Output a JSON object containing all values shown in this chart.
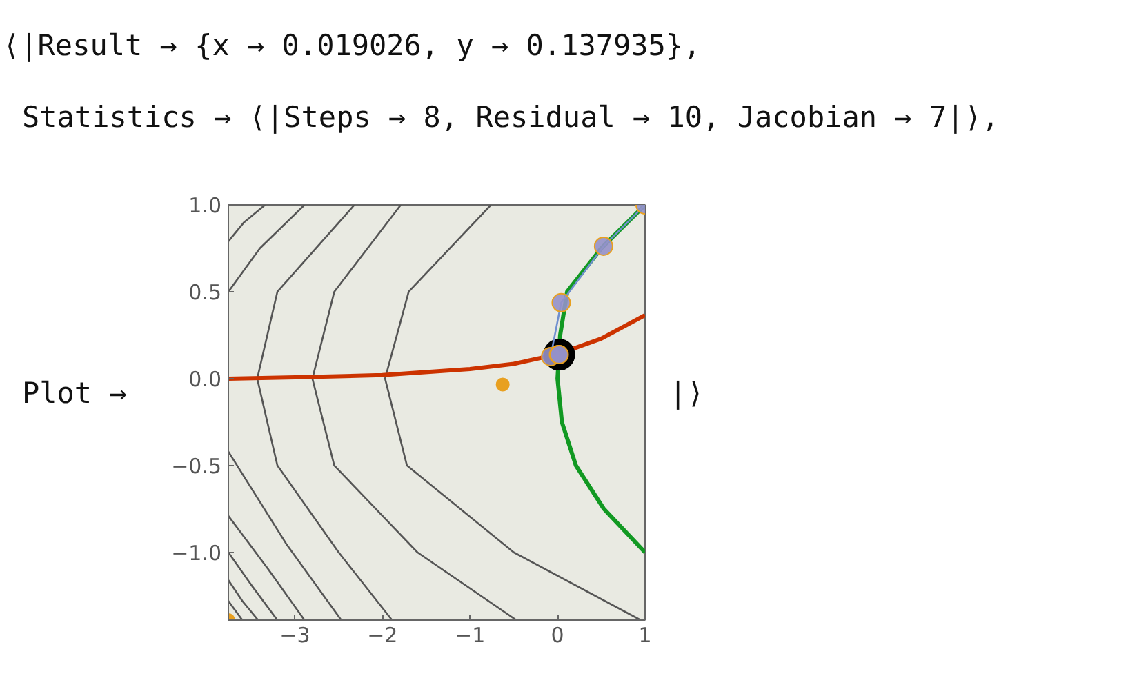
{
  "chart_data": {
    "type": "line",
    "title": "⟨|Result → {x → 0.019026, y → 0.137935},",
    "subtitle": "Statistics → ⟨|Steps → 8, Residual → 10, Jacobian → 7|⟩,",
    "annotations": [
      "Plot →",
      "|⟩"
    ],
    "xlim": [
      -3.76,
      1
    ],
    "ylim": [
      -1.39,
      1
    ],
    "xticks": [
      {
        "value": -3,
        "label": "−3"
      },
      {
        "value": -2,
        "label": "−2"
      },
      {
        "value": -1,
        "label": "−1"
      },
      0,
      1
    ],
    "yticks": [
      {
        "value": -1,
        "label": "−1.0"
      },
      {
        "value": -0.5,
        "label": "−0.5"
      },
      {
        "value": 0,
        "label": "0.0"
      },
      {
        "value": 0.5,
        "label": "0.5"
      },
      {
        "value": 1,
        "label": "1.0"
      }
    ],
    "grid": false,
    "series": [
      {
        "color": "#555555",
        "x": [
          -0.76,
          -1.7,
          -1.97,
          -1.72,
          -0.5,
          0.95
        ],
        "values": [
          1,
          0.5,
          0,
          -0.5,
          -1,
          -1.39
        ]
      },
      {
        "color": "#555555",
        "x": [
          -1.79,
          -2.55,
          -2.8,
          -2.55,
          -1.6,
          -0.47
        ],
        "values": [
          1,
          0.5,
          0,
          -0.5,
          -1,
          -1.39
        ]
      },
      {
        "color": "#555555",
        "x": [
          -2.32,
          -3.2,
          -3.43,
          -3.2,
          -2.5,
          -1.89
        ],
        "values": [
          1,
          0.5,
          0,
          -0.5,
          -1,
          -1.39
        ]
      },
      {
        "color": "#555555",
        "x": [
          -2.89,
          -3.4,
          -3.76
        ],
        "values": [
          1,
          0.75,
          0.5
        ]
      },
      {
        "color": "#555555",
        "x": [
          -3.34,
          -3.58,
          -3.76
        ],
        "values": [
          1,
          0.9,
          0.79
        ]
      },
      {
        "color": "#555555",
        "x": [
          -3.76,
          -3.1,
          -2.47
        ],
        "values": [
          -0.42,
          -0.95,
          -1.39
        ]
      },
      {
        "color": "#555555",
        "x": [
          -3.76,
          -3.3,
          -2.89
        ],
        "values": [
          -0.79,
          -1.1,
          -1.39
        ]
      },
      {
        "color": "#555555",
        "x": [
          -3.76,
          -3.48,
          -3.2
        ],
        "values": [
          -1,
          -1.2,
          -1.39
        ]
      },
      {
        "color": "#555555",
        "x": [
          -3.76,
          -3.6,
          -3.42
        ],
        "values": [
          -1.16,
          -1.28,
          -1.39
        ]
      },
      {
        "color": "#555555",
        "x": [
          -3.76,
          -3.6
        ],
        "values": [
          -1.28,
          -1.39
        ]
      },
      {
        "color": "#cc3300",
        "x": [
          -3.76,
          -3,
          -2,
          -1,
          -0.5,
          0,
          0.5,
          1
        ],
        "values": [
          0,
          0.007,
          0.02,
          0.055,
          0.085,
          0.14,
          0.23,
          0.365
        ]
      },
      {
        "color": "#119922",
        "x": [
          1,
          0.53,
          0.21,
          0.05,
          0,
          0.03,
          0.11,
          0.5,
          1
        ],
        "values": [
          -1,
          -0.75,
          -0.5,
          -0.25,
          0,
          0.25,
          0.5,
          0.75,
          1
        ]
      },
      {
        "type": "scatter",
        "color": "#000000",
        "marker": "circle",
        "x": [
          0.019
        ],
        "values": [
          0.138
        ]
      },
      {
        "color": "#6f8fcf",
        "marker": "circle",
        "x": [
          1,
          0.526,
          0.042,
          -0.079,
          0.011,
          0.019
        ],
        "values": [
          1,
          0.762,
          0.437,
          0.127,
          0.138,
          0.138
        ]
      },
      {
        "type": "scatter",
        "color": "#e8a020",
        "marker": "circle",
        "x": [
          -3.76,
          -0.626
        ],
        "values": [
          -1.39,
          -0.034
        ]
      }
    ]
  }
}
